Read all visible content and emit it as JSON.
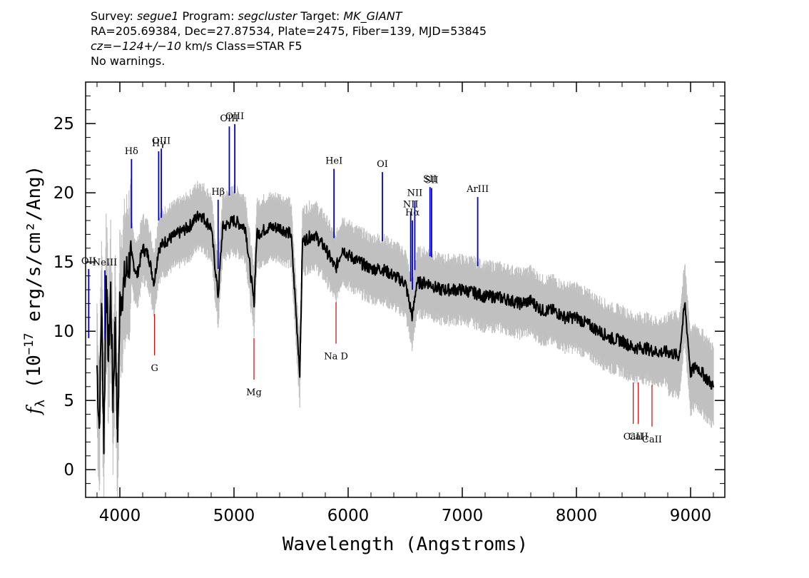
{
  "header": {
    "line1": {
      "survey_label": "Survey: ",
      "survey": "segue1",
      "program_label": " Program: ",
      "program": "segcluster",
      "target_label": " Target: ",
      "target": "MK_GIANT"
    },
    "line2": "RA=205.69384, Dec=27.87534, Plate=2475, Fiber=139, MJD=53845",
    "line3": {
      "cz": "cz=−124+/−10",
      "rest": " km/s Class=STAR F5"
    },
    "line4": "No warnings."
  },
  "colors": {
    "flux": "#000000",
    "error": "#c0c0c0",
    "emission": "#0000cc",
    "absorption": "#cc0000"
  },
  "chart_data": {
    "type": "line",
    "xlabel": "Wavelength (Angstroms)",
    "ylabel_prefix": "f",
    "ylabel_sub": "λ",
    "ylabel_mid": " (10",
    "ylabel_exp": "−17",
    "ylabel_suffix": " erg/s/cm²/Ang)",
    "xlim": [
      3700,
      9300
    ],
    "ylim": [
      -2,
      28
    ],
    "xticks": [
      4000,
      5000,
      6000,
      7000,
      8000,
      9000
    ],
    "yticks": [
      0,
      5,
      10,
      15,
      20,
      25
    ],
    "xtick_labels": [
      "4000",
      "5000",
      "6000",
      "7000",
      "8000",
      "9000"
    ],
    "ytick_labels": [
      "0",
      "5",
      "10",
      "15",
      "20",
      "25"
    ],
    "grid": false,
    "series": [
      {
        "role": "flux",
        "x": [
          3800,
          3820,
          3840,
          3860,
          3880,
          3900,
          3920,
          3940,
          3960,
          3980,
          4000,
          4050,
          4100,
          4150,
          4200,
          4250,
          4300,
          4340,
          4400,
          4500,
          4600,
          4700,
          4800,
          4861,
          4900,
          5000,
          5100,
          5175,
          5200,
          5300,
          5400,
          5500,
          5577,
          5600,
          5700,
          5800,
          5890,
          5950,
          6000,
          6100,
          6200,
          6300,
          6400,
          6500,
          6563,
          6600,
          6700,
          6800,
          6900,
          7000,
          7100,
          7200,
          7300,
          7400,
          7500,
          7600,
          7700,
          7800,
          7900,
          8000,
          8100,
          8200,
          8300,
          8400,
          8500,
          8600,
          8700,
          8800,
          8900,
          8950,
          9000,
          9050,
          9100,
          9150,
          9200
        ],
        "y": [
          7.5,
          3,
          12,
          2,
          14,
          8,
          13,
          5,
          11,
          2,
          12,
          14,
          15.5,
          14,
          16,
          15.5,
          13.5,
          16,
          16.5,
          17,
          17.5,
          18.5,
          17.5,
          12.5,
          17.5,
          18,
          17.5,
          12,
          17,
          17.5,
          17.5,
          17,
          7,
          16.5,
          17,
          16,
          14.5,
          16,
          15.5,
          15,
          14.5,
          14.5,
          14,
          13.5,
          11,
          13.5,
          13.5,
          13,
          13,
          13,
          12.8,
          12.5,
          12.5,
          12.3,
          12,
          12.2,
          11.5,
          11.5,
          11,
          11,
          10.5,
          10,
          9.5,
          9.3,
          8.8,
          8.8,
          8.5,
          8.5,
          8.2,
          12,
          7,
          7.5,
          7,
          6.5,
          6
        ]
      }
    ],
    "emission_lines": [
      {
        "label": "OII",
        "wavelength": 3727
      },
      {
        "label": "NeIII",
        "wavelength": 3869
      },
      {
        "label": "Hδ",
        "wavelength": 4102
      },
      {
        "label": "Hγ",
        "wavelength": 4340
      },
      {
        "label": "OIII",
        "wavelength": 4363
      },
      {
        "label": "Hβ",
        "wavelength": 4861
      },
      {
        "label": "OIII",
        "wavelength": 4959
      },
      {
        "label": "OIII",
        "wavelength": 5007
      },
      {
        "label": "HeI",
        "wavelength": 5876
      },
      {
        "label": "OI",
        "wavelength": 6300
      },
      {
        "label": "NII",
        "wavelength": 6548
      },
      {
        "label": "Hα",
        "wavelength": 6563
      },
      {
        "label": "NII",
        "wavelength": 6584
      },
      {
        "label": "SII",
        "wavelength": 6717
      },
      {
        "label": "SII",
        "wavelength": 6731
      },
      {
        "label": "ArIII",
        "wavelength": 7135
      }
    ],
    "absorption_lines": [
      {
        "label": "G",
        "wavelength": 4304
      },
      {
        "label": "Mg",
        "wavelength": 5175
      },
      {
        "label": "Na D",
        "wavelength": 5894
      },
      {
        "label": "CaII",
        "wavelength": 8498
      },
      {
        "label": "CaII",
        "wavelength": 8542
      },
      {
        "label": "CaII",
        "wavelength": 8662
      }
    ]
  }
}
